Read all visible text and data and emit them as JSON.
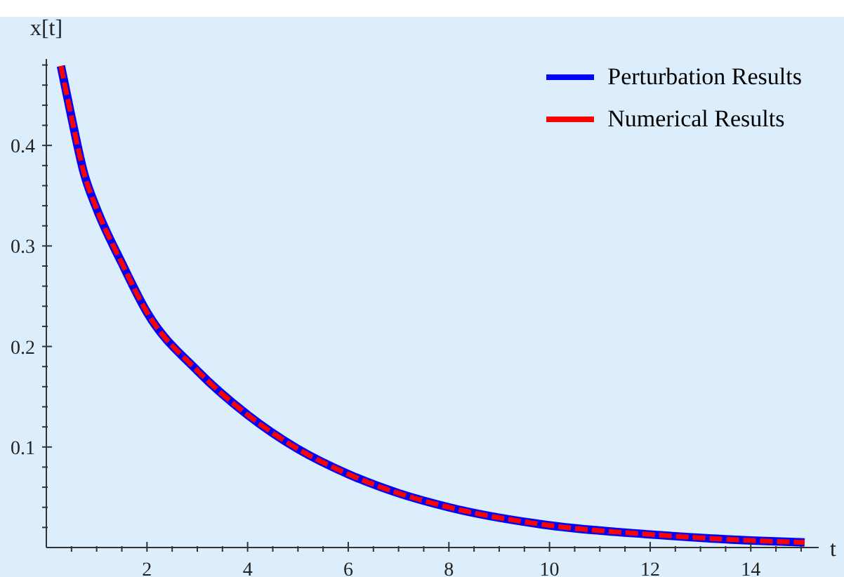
{
  "chart_data": {
    "type": "line",
    "xlabel": "t",
    "ylabel": "x[t]",
    "x": [
      0.29,
      0.5,
      0.75,
      1,
      1.5,
      2,
      3,
      4,
      5,
      6,
      7,
      8,
      10,
      12,
      14,
      15.07
    ],
    "series": [
      {
        "name": "Perturbation Results",
        "color": "#0000ff",
        "line_style": "solid",
        "values": [
          0.479,
          0.428,
          0.372,
          0.337,
          0.283,
          0.234,
          0.176,
          0.132,
          0.098,
          0.073,
          0.054,
          0.04,
          0.022,
          0.013,
          0.007,
          0.005
        ]
      },
      {
        "name": "Numerical Results",
        "color": "#ff0000",
        "line_style": "dashed",
        "values": [
          0.479,
          0.428,
          0.372,
          0.337,
          0.283,
          0.234,
          0.176,
          0.132,
          0.098,
          0.073,
          0.054,
          0.04,
          0.022,
          0.013,
          0.007,
          0.005
        ]
      }
    ],
    "xlim": [
      0,
      15.35
    ],
    "ylim": [
      0,
      0.486
    ],
    "xticks": [
      {
        "value": 0.5,
        "label": null
      },
      {
        "value": 1,
        "label": null
      },
      {
        "value": 1.5,
        "label": null
      },
      2,
      {
        "value": 2.5,
        "label": null
      },
      {
        "value": 3,
        "label": null
      },
      {
        "value": 3.5,
        "label": null
      },
      4,
      {
        "value": 4.5,
        "label": null
      },
      {
        "value": 5,
        "label": null
      },
      {
        "value": 5.5,
        "label": null
      },
      6,
      {
        "value": 6.5,
        "label": null
      },
      {
        "value": 7,
        "label": null
      },
      {
        "value": 7.5,
        "label": null
      },
      8,
      {
        "value": 8.5,
        "label": null
      },
      {
        "value": 9,
        "label": null
      },
      {
        "value": 9.5,
        "label": null
      },
      10,
      {
        "value": 10.5,
        "label": null
      },
      {
        "value": 11,
        "label": null
      },
      {
        "value": 11.5,
        "label": null
      },
      12,
      {
        "value": 12.5,
        "label": null
      },
      {
        "value": 13,
        "label": null
      },
      {
        "value": 13.5,
        "label": null
      },
      14,
      {
        "value": 14.5,
        "label": null
      },
      {
        "value": 15,
        "label": null
      }
    ],
    "yticks": [
      {
        "value": 0.02,
        "label": null
      },
      {
        "value": 0.04,
        "label": null
      },
      {
        "value": 0.06,
        "label": null
      },
      {
        "value": 0.08,
        "label": null
      },
      0.1,
      {
        "value": 0.12,
        "label": null
      },
      {
        "value": 0.14,
        "label": null
      },
      {
        "value": 0.16,
        "label": null
      },
      {
        "value": 0.18,
        "label": null
      },
      0.2,
      {
        "value": 0.22,
        "label": null
      },
      {
        "value": 0.24,
        "label": null
      },
      {
        "value": 0.26,
        "label": null
      },
      {
        "value": 0.28,
        "label": null
      },
      0.3,
      {
        "value": 0.32,
        "label": null
      },
      {
        "value": 0.34,
        "label": null
      },
      {
        "value": 0.36,
        "label": null
      },
      {
        "value": 0.38,
        "label": null
      },
      0.4,
      {
        "value": 0.42,
        "label": null
      },
      {
        "value": 0.44,
        "label": null
      },
      {
        "value": 0.46,
        "label": null
      },
      {
        "value": 0.48,
        "label": null
      }
    ],
    "legend": "top right",
    "marker": "none",
    "grid": false
  }
}
